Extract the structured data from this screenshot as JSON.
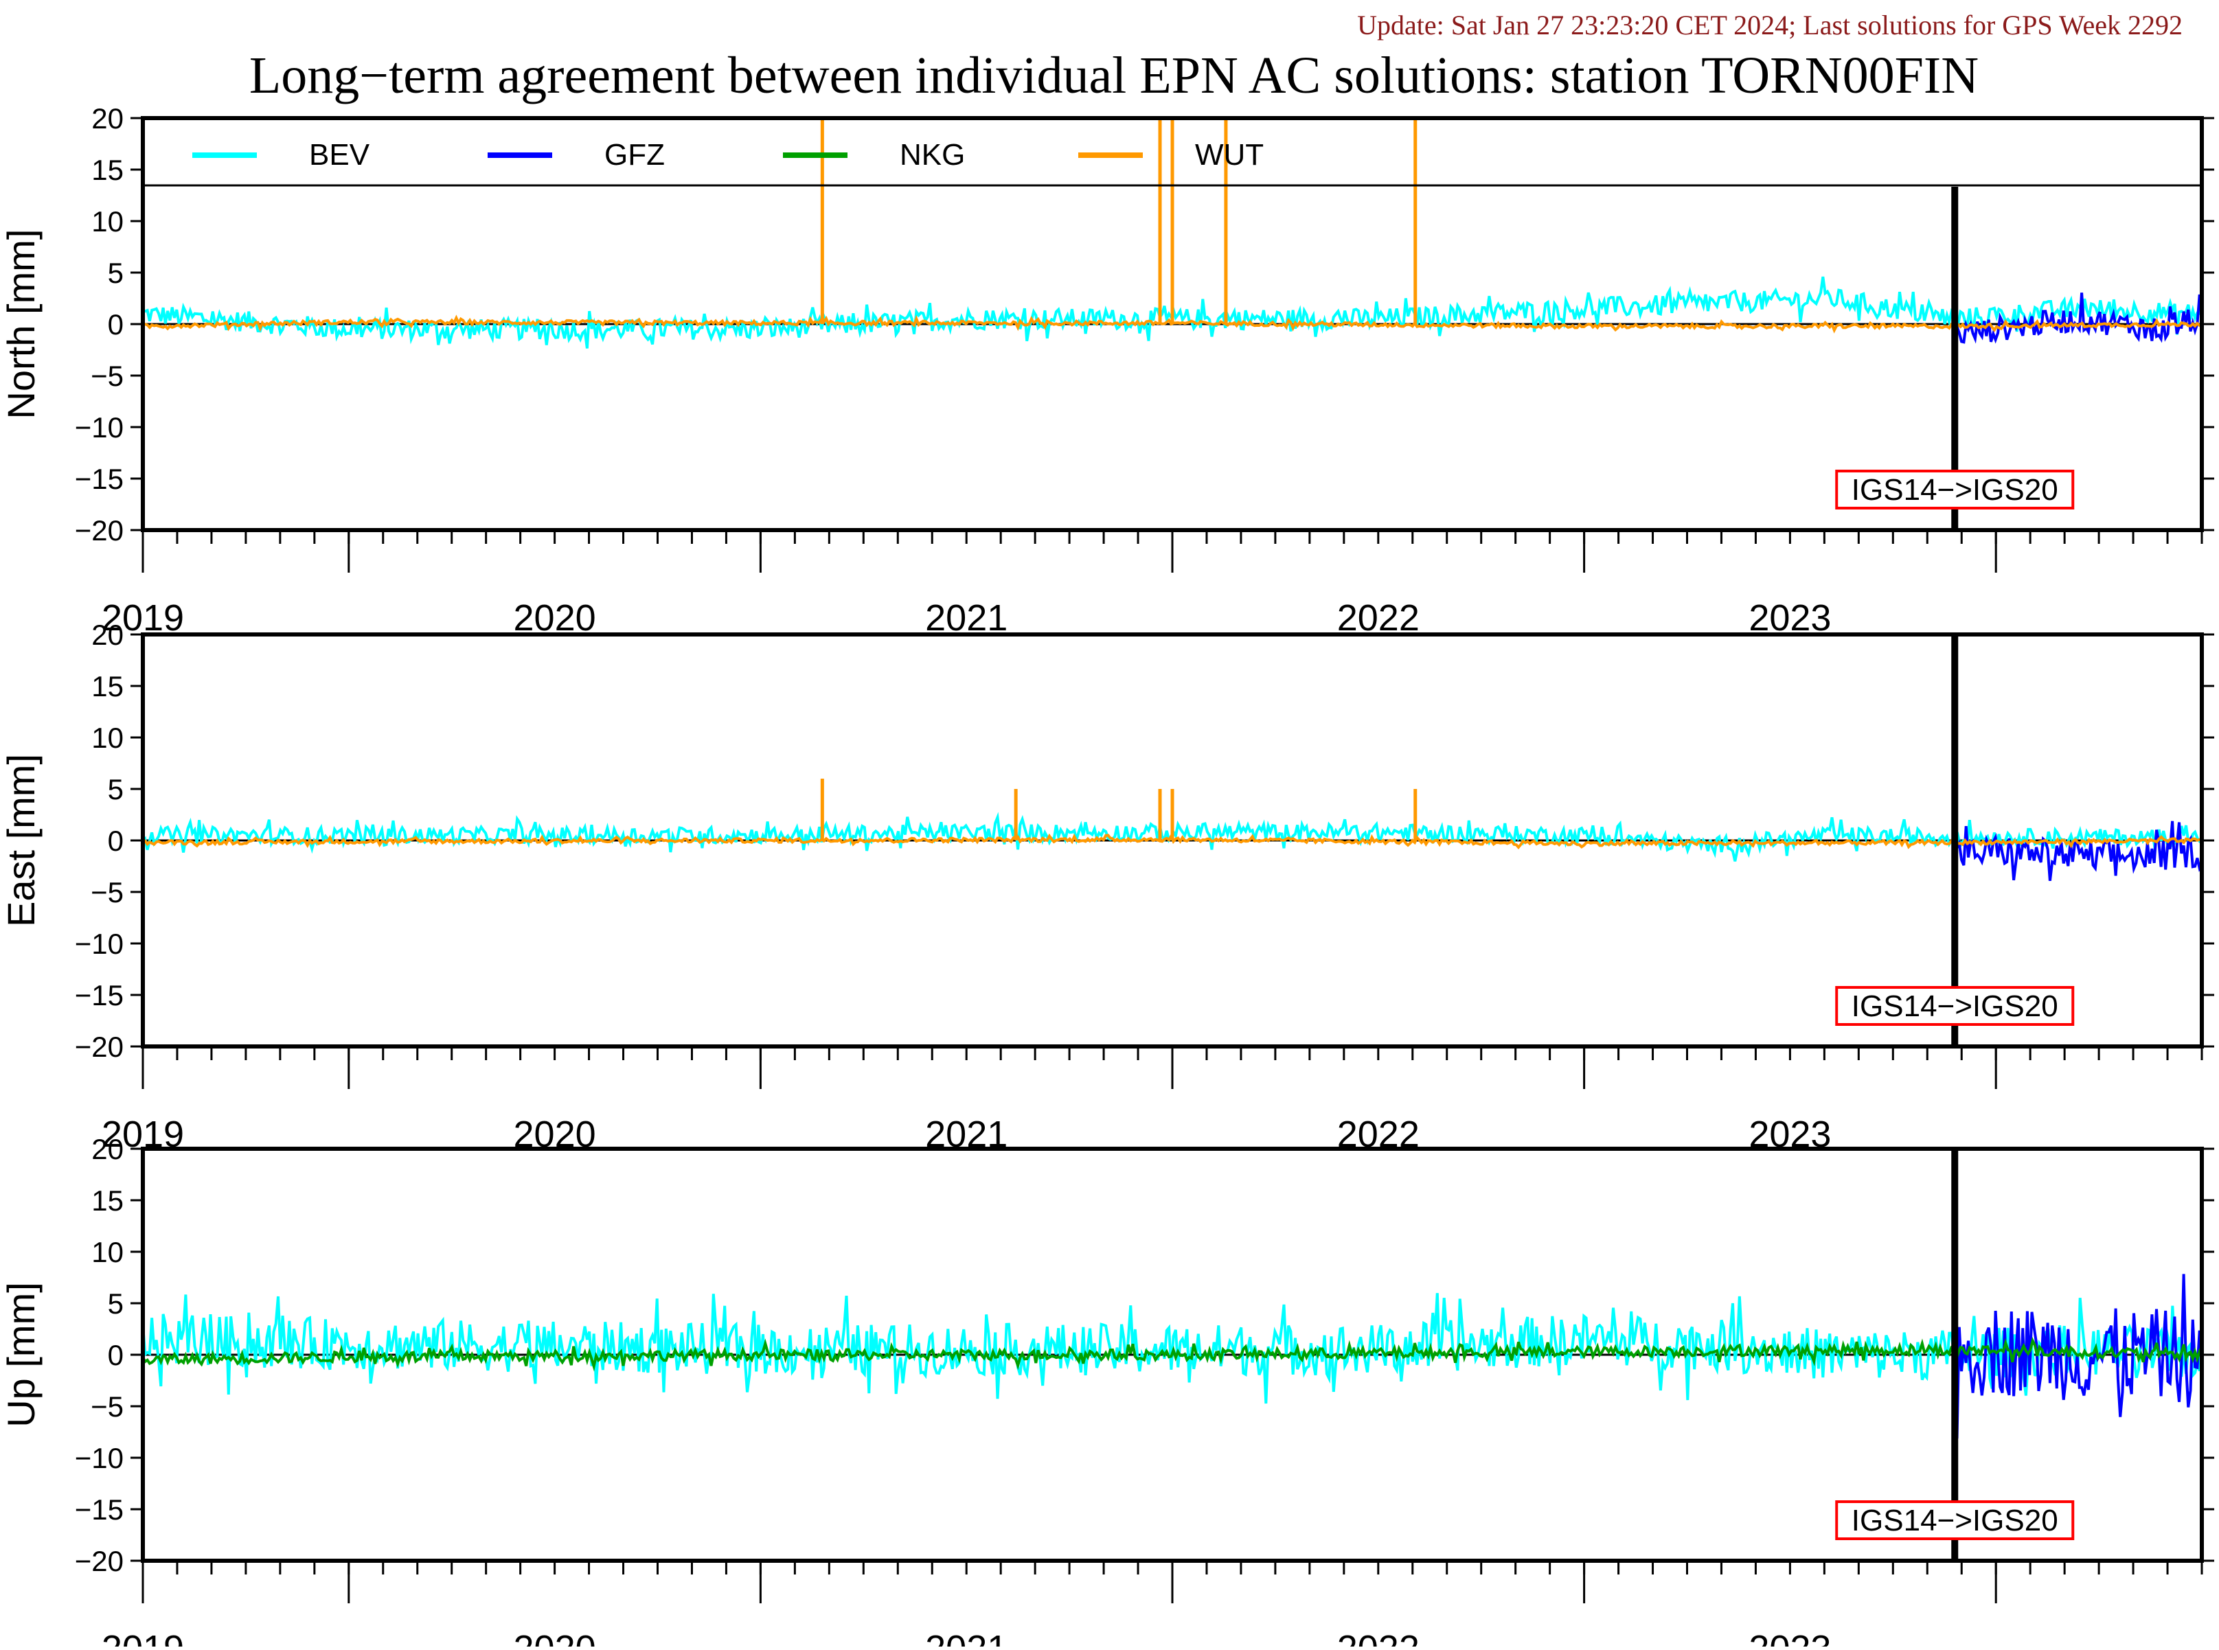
{
  "header": {
    "update_text": "Update: Sat Jan 27 23:23:20 CET 2024; Last solutions for GPS Week 2292",
    "title": "Long−term agreement between individual EPN AC solutions: station TORN00FIN"
  },
  "colors": {
    "BEV": "#00ffff",
    "GFZ": "#0000ff",
    "NKG": "#00a000",
    "WUT": "#ff9900",
    "update_text": "#8b1a1a",
    "annotation_box": "#ff0000"
  },
  "chart_data": {
    "type": "line",
    "x_unit": "year",
    "x_range": [
      2018.5,
      2023.5
    ],
    "x_tick_labels": [
      "2019",
      "2020",
      "2021",
      "2022",
      "2023"
    ],
    "y_range": [
      -20,
      20
    ],
    "y_tick_labels": [
      "20",
      "15",
      "10",
      "5",
      "0",
      "−5",
      "−10",
      "−15",
      "−20"
    ],
    "legend": {
      "placement": "top-inside-north-panel",
      "entries": [
        "BEV",
        "GFZ",
        "NKG",
        "WUT"
      ]
    },
    "reference_frame_change": {
      "x": 2022.9,
      "label": "IGS14−>IGS20"
    },
    "panels": [
      {
        "ylabel": "North [mm]",
        "series": [
          {
            "name": "BEV",
            "x": [
              2018.5,
              2019.0,
              2019.5,
              2020.0,
              2020.5,
              2021.0,
              2021.5,
              2022.0,
              2022.3,
              2022.6,
              2022.9,
              2023.2,
              2023.5
            ],
            "y": [
              1.0,
              -0.5,
              -0.5,
              -0.5,
              0.5,
              0.5,
              0.5,
              1.5,
              2.0,
              2.5,
              0.5,
              1.5,
              1.0
            ],
            "spread": 1.0
          },
          {
            "name": "GFZ",
            "x": [
              2022.9,
              2023.0,
              2023.2,
              2023.4,
              2023.5
            ],
            "y": [
              -1.0,
              -0.5,
              0.5,
              -0.5,
              0.5
            ],
            "spread": 1.2
          },
          {
            "name": "WUT",
            "x": [
              2018.5,
              2019.0,
              2020.0,
              2021.0,
              2022.0,
              2022.9,
              2023.5
            ],
            "y": [
              -0.2,
              0.2,
              0.1,
              0.1,
              -0.2,
              -0.2,
              0.0
            ],
            "spread": 0.2
          },
          {
            "name": "WUT",
            "label_only_outliers": true,
            "spikes_x": [
              2020.15,
              2020.97,
              2021.0,
              2021.13,
              2021.59
            ],
            "spikes_y": [
              20,
              20,
              20,
              20,
              20
            ]
          }
        ]
      },
      {
        "ylabel": "East [mm]",
        "series": [
          {
            "name": "BEV",
            "x": [
              2018.5,
              2019.0,
              2019.5,
              2020.0,
              2020.5,
              2021.0,
              2021.5,
              2022.0,
              2022.3,
              2022.6,
              2022.9,
              2023.2,
              2023.5
            ],
            "y": [
              0.5,
              0.5,
              0.5,
              0.5,
              0.8,
              0.8,
              0.8,
              0.5,
              -0.5,
              0.5,
              0.3,
              0.3,
              0.3
            ],
            "spread": 0.8
          },
          {
            "name": "GFZ",
            "x": [
              2022.9,
              2023.0,
              2023.2,
              2023.4,
              2023.5
            ],
            "y": [
              -1.5,
              -1.0,
              -1.5,
              -1.5,
              -1.0
            ],
            "spread": 1.5
          },
          {
            "name": "WUT",
            "x": [
              2018.5,
              2019.0,
              2020.0,
              2021.0,
              2022.0,
              2022.9,
              2023.5
            ],
            "y": [
              -0.2,
              -0.1,
              0.0,
              0.1,
              -0.3,
              -0.2,
              0.0
            ],
            "spread": 0.2
          },
          {
            "name": "WUT",
            "spikes_x": [
              2020.15,
              2020.62,
              2020.97,
              2021.0,
              2021.59
            ],
            "spikes_y": [
              6,
              5,
              5,
              5,
              5
            ]
          }
        ]
      },
      {
        "ylabel": "Up [mm]",
        "series": [
          {
            "name": "BEV",
            "x": [
              2018.5,
              2019.0,
              2019.5,
              2020.0,
              2020.5,
              2021.0,
              2021.5,
              2022.0,
              2022.3,
              2022.6,
              2022.9,
              2023.2,
              2023.5
            ],
            "y": [
              1.5,
              1.0,
              0.8,
              0.5,
              0.5,
              0.5,
              0.5,
              1.5,
              1.0,
              0.0,
              0.0,
              0.5,
              0.0
            ],
            "spread": 2.5
          },
          {
            "name": "GFZ",
            "x": [
              2022.9,
              2023.0,
              2023.2,
              2023.4,
              2023.5
            ],
            "y": [
              0.0,
              0.5,
              0.0,
              0.0,
              -1.0
            ],
            "spread": 4.5
          },
          {
            "name": "NKG",
            "x": [
              2018.5,
              2019.0,
              2020.0,
              2021.0,
              2022.0,
              2022.9,
              2023.5
            ],
            "y": [
              -0.5,
              -0.2,
              0.0,
              0.0,
              0.3,
              0.5,
              0.0
            ],
            "spread": 0.5
          }
        ]
      }
    ]
  }
}
